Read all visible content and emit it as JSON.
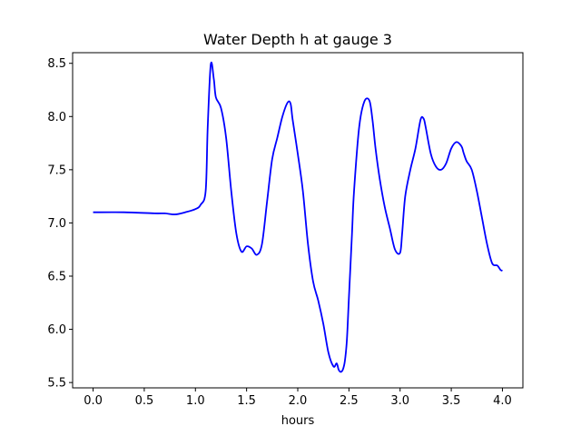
{
  "chart_data": {
    "type": "line",
    "title": "Water Depth h at gauge 3",
    "xlabel": "hours",
    "ylabel": "",
    "xlim": [
      -0.2,
      4.2
    ],
    "ylim": [
      5.45,
      8.6
    ],
    "xticks": [
      0.0,
      0.5,
      1.0,
      1.5,
      2.0,
      2.5,
      3.0,
      3.5,
      4.0
    ],
    "xtick_labels": [
      "0.0",
      "0.5",
      "1.0",
      "1.5",
      "2.0",
      "2.5",
      "3.0",
      "3.5",
      "4.0"
    ],
    "yticks": [
      5.5,
      6.0,
      6.5,
      7.0,
      7.5,
      8.0,
      8.5
    ],
    "ytick_labels": [
      "5.5",
      "6.0",
      "6.5",
      "7.0",
      "7.5",
      "8.0",
      "8.5"
    ],
    "grid": false,
    "series": [
      {
        "color": "#0000ff",
        "x": [
          0.0,
          0.3,
          0.6,
          0.7,
          0.8,
          0.9,
          1.0,
          1.05,
          1.1,
          1.12,
          1.15,
          1.18,
          1.2,
          1.25,
          1.3,
          1.35,
          1.4,
          1.45,
          1.5,
          1.55,
          1.6,
          1.65,
          1.7,
          1.75,
          1.8,
          1.85,
          1.9,
          1.93,
          1.95,
          2.0,
          2.05,
          2.1,
          2.15,
          2.2,
          2.25,
          2.3,
          2.35,
          2.38,
          2.4,
          2.42,
          2.44,
          2.46,
          2.48,
          2.5,
          2.53,
          2.55,
          2.6,
          2.65,
          2.7,
          2.73,
          2.76,
          2.8,
          2.85,
          2.9,
          2.95,
          3.0,
          3.02,
          3.05,
          3.1,
          3.15,
          3.2,
          3.23,
          3.25,
          3.3,
          3.35,
          3.4,
          3.45,
          3.5,
          3.55,
          3.6,
          3.62,
          3.65,
          3.7,
          3.75,
          3.8,
          3.85,
          3.9,
          3.95,
          3.98,
          4.0
        ],
        "y": [
          7.1,
          7.1,
          7.09,
          7.09,
          7.08,
          7.1,
          7.13,
          7.17,
          7.3,
          7.9,
          8.49,
          8.35,
          8.18,
          8.08,
          7.8,
          7.3,
          6.9,
          6.73,
          6.78,
          6.76,
          6.7,
          6.8,
          7.2,
          7.6,
          7.8,
          8.0,
          8.13,
          8.12,
          7.97,
          7.65,
          7.3,
          6.8,
          6.45,
          6.27,
          6.05,
          5.78,
          5.65,
          5.68,
          5.62,
          5.6,
          5.62,
          5.7,
          5.9,
          6.3,
          6.9,
          7.3,
          7.9,
          8.14,
          8.15,
          7.97,
          7.7,
          7.42,
          7.15,
          6.95,
          6.75,
          6.72,
          6.9,
          7.25,
          7.5,
          7.7,
          7.97,
          7.98,
          7.9,
          7.65,
          7.53,
          7.5,
          7.56,
          7.7,
          7.76,
          7.72,
          7.66,
          7.58,
          7.5,
          7.3,
          7.05,
          6.8,
          6.62,
          6.6,
          6.56,
          6.55
        ]
      }
    ]
  }
}
